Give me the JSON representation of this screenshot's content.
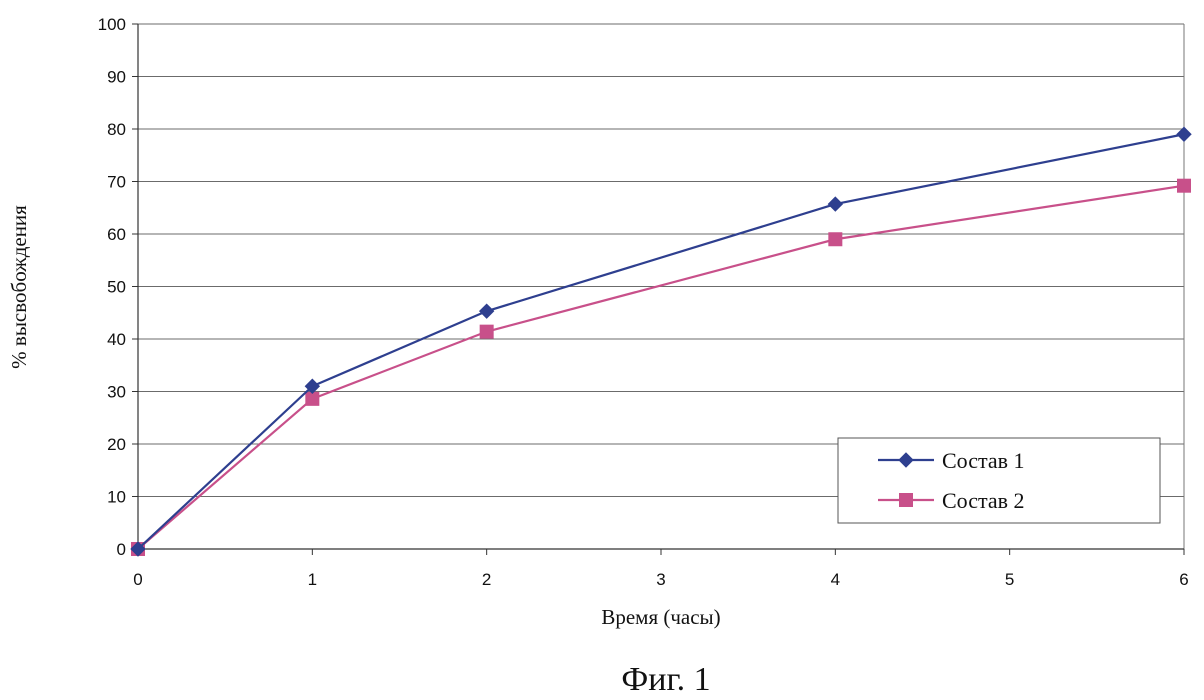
{
  "chart_data": {
    "type": "line",
    "xlabel": "Время (часы)",
    "ylabel": "% высвобождения",
    "xlim": [
      0,
      6
    ],
    "ylim": [
      0,
      100
    ],
    "xticks": [
      0,
      1,
      2,
      3,
      4,
      5,
      6
    ],
    "yticks": [
      0,
      10,
      20,
      30,
      40,
      50,
      60,
      70,
      80,
      90,
      100
    ],
    "grid": "horizontal",
    "legend_position": "lower-right",
    "series": [
      {
        "name": "Состав 1",
        "color": "#2E3F8F",
        "marker": "diamond",
        "x": [
          0,
          1,
          2,
          4,
          6
        ],
        "y": [
          0,
          31,
          45.3,
          65.7,
          79
        ]
      },
      {
        "name": "Состав 2",
        "color": "#C8508A",
        "marker": "square",
        "x": [
          0,
          1,
          2,
          4,
          6
        ],
        "y": [
          0,
          28.6,
          41.4,
          59,
          69.2
        ]
      }
    ]
  },
  "caption": "Фиг. 1"
}
